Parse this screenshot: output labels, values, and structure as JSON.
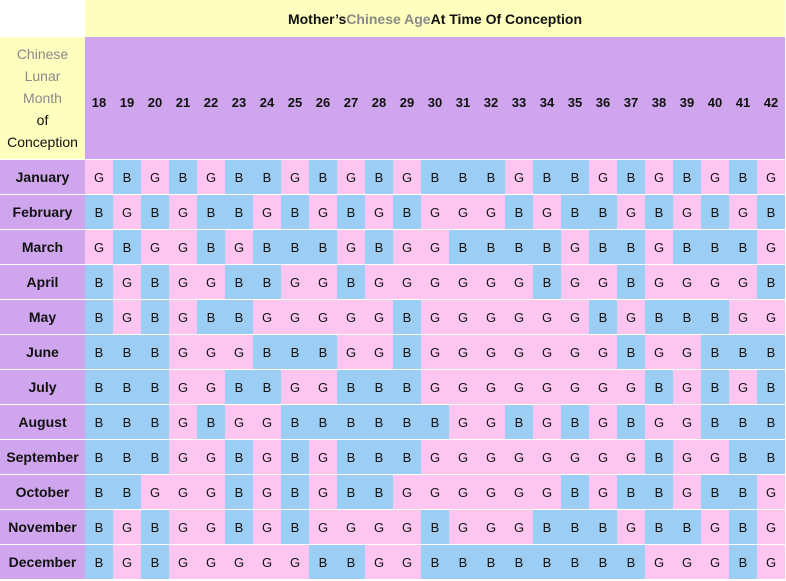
{
  "title": {
    "prefix": "Mother’s ",
    "highlight": "Chinese Age",
    "suffix": " At Time Of Conception"
  },
  "row_header": {
    "line1": "Chinese",
    "line2": "Lunar",
    "line3": "Month",
    "line4": "of",
    "line5": "Conception"
  },
  "colors": {
    "girl": "#fdc6f1",
    "boy": "#9ccdf4",
    "header_purple": "#cfa6ee",
    "header_yellow": "#fefebe",
    "label_gray": "#8a8a8a"
  },
  "ages": [
    "18",
    "19",
    "20",
    "21",
    "22",
    "23",
    "24",
    "25",
    "26",
    "27",
    "28",
    "29",
    "30",
    "31",
    "32",
    "33",
    "34",
    "35",
    "36",
    "37",
    "38",
    "39",
    "40",
    "41",
    "42"
  ],
  "rows": [
    {
      "month": "January",
      "values": [
        "G",
        "B",
        "G",
        "B",
        "G",
        "B",
        "B",
        "G",
        "B",
        "G",
        "B",
        "G",
        "B",
        "B",
        "B",
        "G",
        "B",
        "B",
        "G",
        "B",
        "G",
        "B",
        "G",
        "B",
        "G"
      ]
    },
    {
      "month": "February",
      "values": [
        "B",
        "G",
        "B",
        "G",
        "B",
        "B",
        "G",
        "B",
        "G",
        "B",
        "G",
        "B",
        "G",
        "G",
        "G",
        "B",
        "G",
        "B",
        "B",
        "G",
        "B",
        "G",
        "B",
        "G",
        "B"
      ]
    },
    {
      "month": "March",
      "values": [
        "G",
        "B",
        "G",
        "G",
        "B",
        "G",
        "B",
        "B",
        "B",
        "G",
        "B",
        "G",
        "G",
        "B",
        "B",
        "B",
        "B",
        "G",
        "B",
        "B",
        "G",
        "B",
        "B",
        "B",
        "G"
      ]
    },
    {
      "month": "April",
      "values": [
        "B",
        "G",
        "B",
        "G",
        "G",
        "B",
        "B",
        "G",
        "G",
        "B",
        "G",
        "G",
        "G",
        "G",
        "G",
        "G",
        "B",
        "G",
        "G",
        "B",
        "G",
        "G",
        "G",
        "G",
        "B"
      ]
    },
    {
      "month": "May",
      "values": [
        "B",
        "G",
        "B",
        "G",
        "B",
        "B",
        "G",
        "G",
        "G",
        "G",
        "G",
        "B",
        "G",
        "G",
        "G",
        "G",
        "G",
        "G",
        "B",
        "G",
        "B",
        "B",
        "B",
        "G",
        "G"
      ]
    },
    {
      "month": "June",
      "values": [
        "B",
        "B",
        "B",
        "G",
        "G",
        "G",
        "B",
        "B",
        "B",
        "G",
        "G",
        "B",
        "G",
        "G",
        "G",
        "G",
        "G",
        "G",
        "G",
        "B",
        "G",
        "G",
        "B",
        "B",
        "B"
      ]
    },
    {
      "month": "July",
      "values": [
        "B",
        "B",
        "B",
        "G",
        "G",
        "B",
        "B",
        "G",
        "G",
        "B",
        "B",
        "B",
        "G",
        "G",
        "G",
        "G",
        "G",
        "G",
        "G",
        "G",
        "B",
        "G",
        "B",
        "G",
        "B"
      ]
    },
    {
      "month": "August",
      "values": [
        "B",
        "B",
        "B",
        "G",
        "B",
        "G",
        "G",
        "B",
        "B",
        "B",
        "B",
        "B",
        "B",
        "G",
        "G",
        "B",
        "G",
        "B",
        "G",
        "B",
        "G",
        "G",
        "B",
        "B",
        "B"
      ]
    },
    {
      "month": "September",
      "values": [
        "B",
        "B",
        "B",
        "G",
        "G",
        "B",
        "G",
        "B",
        "G",
        "B",
        "B",
        "B",
        "G",
        "G",
        "G",
        "G",
        "G",
        "G",
        "G",
        "G",
        "B",
        "G",
        "G",
        "B",
        "B"
      ]
    },
    {
      "month": "October",
      "values": [
        "B",
        "B",
        "G",
        "G",
        "G",
        "B",
        "G",
        "B",
        "G",
        "B",
        "B",
        "G",
        "G",
        "G",
        "G",
        "G",
        "G",
        "B",
        "G",
        "B",
        "B",
        "G",
        "B",
        "B",
        "G"
      ]
    },
    {
      "month": "November",
      "values": [
        "B",
        "G",
        "B",
        "G",
        "G",
        "B",
        "G",
        "B",
        "G",
        "G",
        "G",
        "G",
        "B",
        "G",
        "G",
        "G",
        "B",
        "B",
        "B",
        "G",
        "B",
        "B",
        "G",
        "B",
        "G"
      ]
    },
    {
      "month": "December",
      "values": [
        "B",
        "G",
        "B",
        "G",
        "G",
        "G",
        "G",
        "G",
        "B",
        "B",
        "G",
        "G",
        "B",
        "B",
        "B",
        "B",
        "B",
        "B",
        "B",
        "B",
        "G",
        "G",
        "G",
        "B",
        "G"
      ]
    }
  ]
}
